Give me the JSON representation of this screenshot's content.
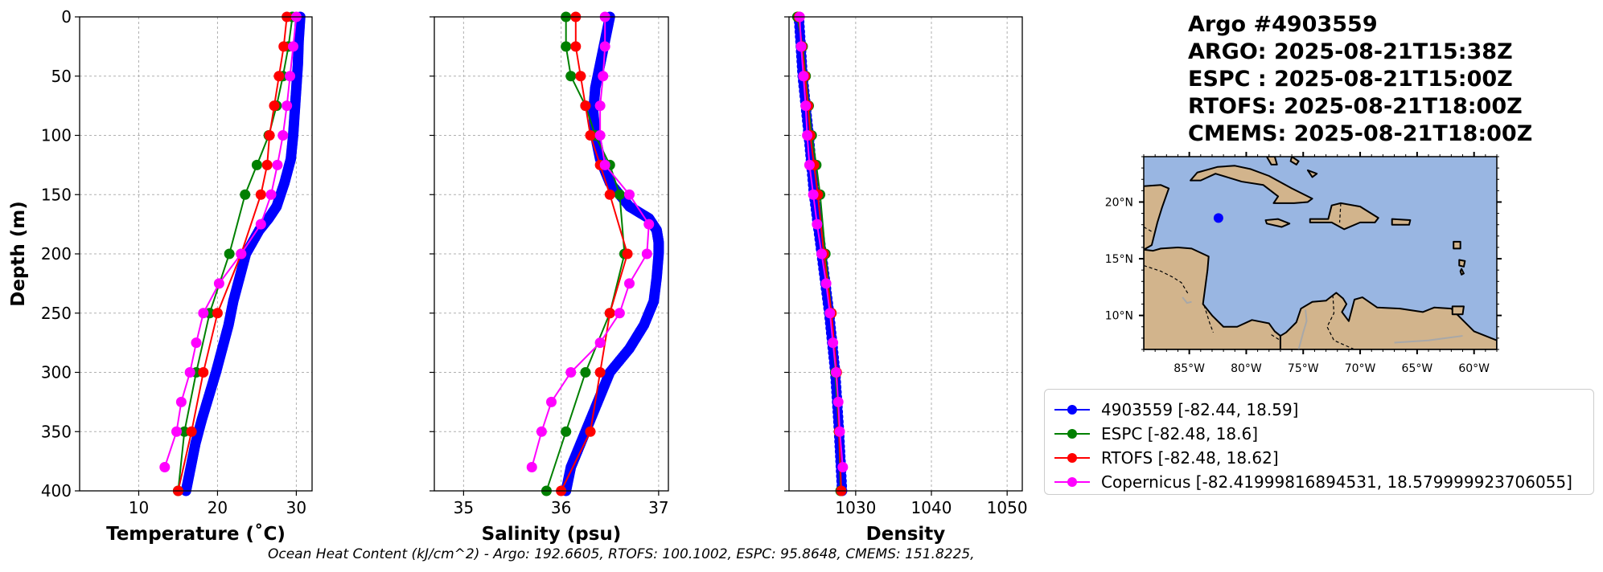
{
  "title": {
    "line1": "Argo #4903559",
    "line2": "ARGO: 2025-08-21T15:38Z",
    "line3": "ESPC : 2025-08-21T15:00Z",
    "line4": "RTOFS: 2025-08-21T18:00Z",
    "line5": "CMEMS: 2025-08-21T18:00Z"
  },
  "colors": {
    "argo": "#0000ff",
    "espc": "#008000",
    "rtofs": "#ff0000",
    "cmems": "#ff00ff",
    "ocean": "#99b6e2",
    "land": "#d2b48c"
  },
  "chart_data": [
    {
      "type": "line",
      "xlabel": "Temperature (˚C)",
      "ylabel": "Depth (m)",
      "xlim": [
        2.5,
        32
      ],
      "ylim": [
        400,
        0
      ],
      "xticks": [
        10,
        20,
        30
      ],
      "yticks": [
        0,
        50,
        100,
        150,
        200,
        250,
        300,
        350,
        400
      ],
      "grid": true,
      "series": [
        {
          "name": "argo",
          "depth": [
            0,
            20,
            40,
            60,
            80,
            100,
            120,
            140,
            160,
            170,
            180,
            200,
            220,
            240,
            260,
            280,
            300,
            320,
            340,
            360,
            380,
            400
          ],
          "values": [
            30.5,
            30.3,
            30.2,
            30.0,
            29.8,
            29.6,
            29.3,
            28.5,
            27.5,
            26.5,
            25.3,
            23.6,
            22.8,
            22.0,
            21.4,
            20.6,
            19.8,
            18.9,
            18.0,
            17.2,
            16.6,
            16.0
          ]
        },
        {
          "name": "espc",
          "depth": [
            0,
            25,
            50,
            75,
            100,
            125,
            150,
            200,
            250,
            300,
            350,
            400
          ],
          "values": [
            29.5,
            29.0,
            28.3,
            27.5,
            26.5,
            25.0,
            23.5,
            21.5,
            19.0,
            17.3,
            15.8,
            15.0
          ]
        },
        {
          "name": "rtofs",
          "depth": [
            0,
            25,
            50,
            75,
            100,
            125,
            150,
            200,
            250,
            300,
            350,
            400
          ],
          "values": [
            28.8,
            28.4,
            27.8,
            27.2,
            26.6,
            26.3,
            25.5,
            23.0,
            20.0,
            18.2,
            16.7,
            15.0
          ]
        },
        {
          "name": "cmems",
          "depth": [
            0,
            25,
            50,
            75,
            100,
            125,
            150,
            175,
            200,
            225,
            250,
            275,
            300,
            325,
            350,
            380
          ],
          "values": [
            30.0,
            29.6,
            29.2,
            28.8,
            28.3,
            27.6,
            26.8,
            25.5,
            23.0,
            20.2,
            18.2,
            17.3,
            16.5,
            15.4,
            14.8,
            13.3
          ]
        }
      ]
    },
    {
      "type": "line",
      "xlabel": "Salinity (psu)",
      "ylabel": "",
      "xlim": [
        34.7,
        37.1
      ],
      "ylim": [
        400,
        0
      ],
      "xticks": [
        35,
        36,
        37
      ],
      "yticks": [
        0,
        50,
        100,
        150,
        200,
        250,
        300,
        350,
        400
      ],
      "grid": true,
      "series": [
        {
          "name": "argo",
          "depth": [
            0,
            20,
            40,
            60,
            80,
            100,
            120,
            140,
            160,
            170,
            180,
            190,
            200,
            220,
            240,
            260,
            280,
            300,
            320,
            340,
            360,
            380,
            400
          ],
          "values": [
            36.5,
            36.45,
            36.4,
            36.35,
            36.33,
            36.35,
            36.4,
            36.5,
            36.7,
            36.9,
            36.98,
            37.0,
            37.0,
            36.98,
            36.95,
            36.85,
            36.7,
            36.5,
            36.4,
            36.3,
            36.2,
            36.1,
            36.05
          ]
        },
        {
          "name": "espc",
          "depth": [
            0,
            25,
            50,
            75,
            100,
            125,
            150,
            200,
            250,
            300,
            350,
            400
          ],
          "values": [
            36.05,
            36.05,
            36.1,
            36.25,
            36.35,
            36.5,
            36.6,
            36.65,
            36.5,
            36.25,
            36.05,
            35.85
          ]
        },
        {
          "name": "rtofs",
          "depth": [
            0,
            25,
            50,
            75,
            100,
            125,
            150,
            200,
            250,
            300,
            350,
            400
          ],
          "values": [
            36.15,
            36.15,
            36.2,
            36.25,
            36.3,
            36.4,
            36.5,
            36.68,
            36.5,
            36.4,
            36.3,
            36.0
          ]
        },
        {
          "name": "cmems",
          "depth": [
            0,
            25,
            50,
            75,
            100,
            125,
            150,
            175,
            200,
            225,
            250,
            275,
            300,
            325,
            350,
            380
          ],
          "values": [
            36.45,
            36.45,
            36.43,
            36.4,
            36.4,
            36.45,
            36.7,
            36.9,
            36.88,
            36.7,
            36.6,
            36.4,
            36.1,
            35.9,
            35.8,
            35.7
          ]
        }
      ]
    },
    {
      "type": "line",
      "xlabel": "Density",
      "ylabel": "",
      "xlim": [
        1021.2,
        1052
      ],
      "ylim": [
        400,
        0
      ],
      "xticks": [
        1030,
        1040,
        1050
      ],
      "yticks": [
        0,
        50,
        100,
        150,
        200,
        250,
        300,
        350,
        400
      ],
      "grid": true,
      "series": [
        {
          "name": "argo",
          "depth": [
            0,
            50,
            100,
            150,
            200,
            250,
            300,
            350,
            400
          ],
          "values": [
            1022.5,
            1023.0,
            1023.8,
            1024.5,
            1025.5,
            1026.5,
            1027.3,
            1027.8,
            1028.2
          ]
        },
        {
          "name": "espc",
          "depth": [
            0,
            25,
            50,
            75,
            100,
            125,
            150,
            200,
            250,
            300,
            350,
            400
          ],
          "values": [
            1022.3,
            1023.0,
            1023.4,
            1023.8,
            1024.2,
            1024.8,
            1025.3,
            1026.0,
            1026.8,
            1027.3,
            1027.8,
            1028.0
          ]
        },
        {
          "name": "rtofs",
          "depth": [
            0,
            25,
            50,
            75,
            100,
            125,
            150,
            200,
            250,
            300,
            350,
            400
          ],
          "values": [
            1022.5,
            1022.9,
            1023.3,
            1023.7,
            1024.0,
            1024.5,
            1025.0,
            1025.8,
            1026.8,
            1027.5,
            1027.8,
            1028.1
          ]
        },
        {
          "name": "cmems",
          "depth": [
            0,
            25,
            50,
            75,
            100,
            125,
            150,
            175,
            200,
            225,
            250,
            275,
            300,
            325,
            350,
            380
          ],
          "values": [
            1022.6,
            1022.8,
            1023.1,
            1023.4,
            1023.6,
            1023.9,
            1024.4,
            1024.9,
            1025.5,
            1026.1,
            1026.6,
            1027.0,
            1027.4,
            1027.7,
            1027.9,
            1028.3
          ]
        }
      ]
    },
    {
      "type": "map",
      "title": "",
      "lon_range": [
        -89,
        -58
      ],
      "lat_range": [
        7,
        24
      ],
      "xticks": [
        -85,
        -80,
        -75,
        -70,
        -65,
        -60
      ],
      "xtick_labels": [
        "85°W",
        "80°W",
        "75°W",
        "70°W",
        "65°W",
        "60°W"
      ],
      "yticks": [
        10,
        15,
        20
      ],
      "ytick_labels": [
        "10°N",
        "15°N",
        "20°N"
      ],
      "point": {
        "lon": -82.44,
        "lat": 18.59
      }
    }
  ],
  "legend": [
    {
      "key": "argo",
      "label": "4903559 [-82.44, 18.59]"
    },
    {
      "key": "espc",
      "label": "ESPC [-82.48, 18.6]"
    },
    {
      "key": "rtofs",
      "label": "RTOFS [-82.48, 18.62]"
    },
    {
      "key": "cmems",
      "label": "Copernicus [-82.41999816894531, 18.579999923706055]"
    }
  ],
  "footer": "Ocean Heat Content (kJ/cm^2) - Argo: 192.6605,  RTOFS: 100.1002,  ESPC: 95.8648,  CMEMS: 151.8225,"
}
